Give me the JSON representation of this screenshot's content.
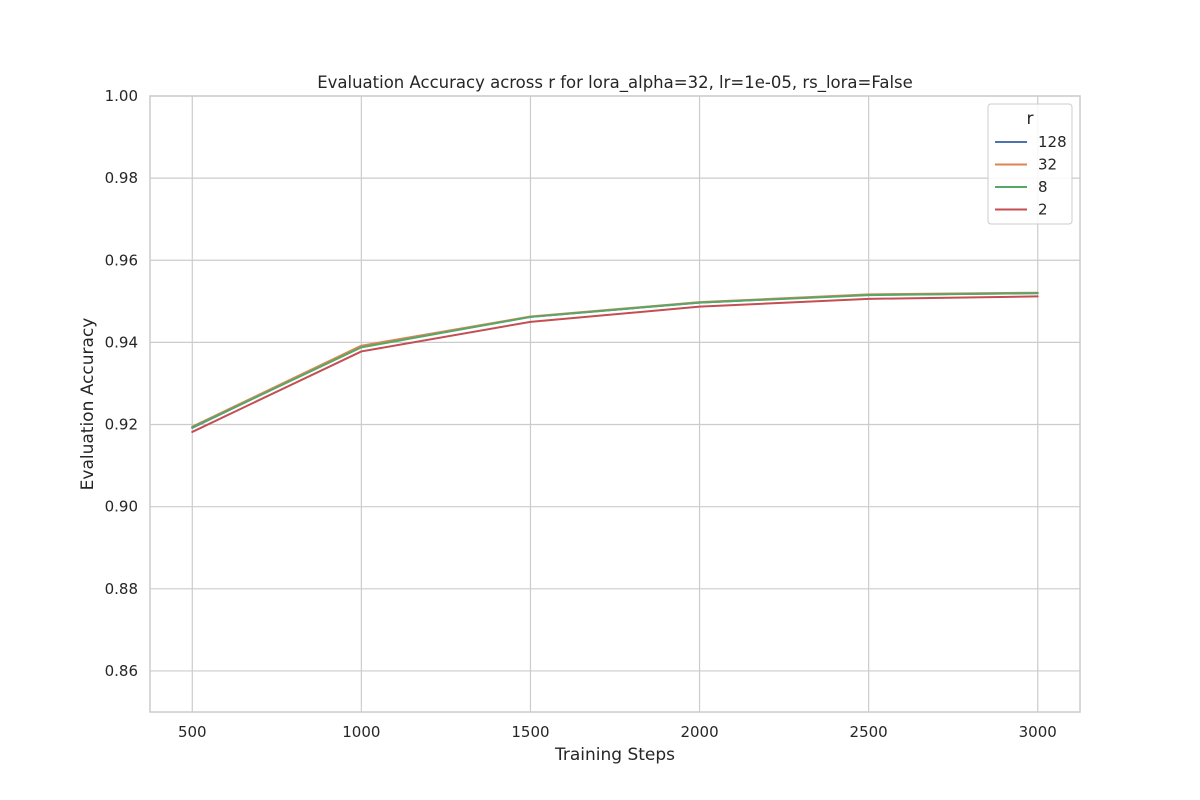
{
  "chart_data": {
    "type": "line",
    "title": "Evaluation Accuracy across r for lora_alpha=32, lr=1e-05, rs_lora=False",
    "xlabel": "Training Steps",
    "ylabel": "Evaluation Accuracy",
    "x": [
      500,
      1000,
      1500,
      2000,
      2500,
      3000
    ],
    "xticks": [
      500,
      1000,
      1500,
      2000,
      2500,
      3000
    ],
    "xtick_labels": [
      "500",
      "1000",
      "1500",
      "2000",
      "2500",
      "3000"
    ],
    "xlim": [
      375,
      3125
    ],
    "yticks": [
      0.86,
      0.88,
      0.9,
      0.92,
      0.94,
      0.96,
      0.98,
      1.0
    ],
    "ytick_labels": [
      "0.86",
      "0.88",
      "0.90",
      "0.92",
      "0.94",
      "0.96",
      "0.98",
      "1.00"
    ],
    "ylim": [
      0.85,
      1.0
    ],
    "grid": true,
    "legend": {
      "title": "r",
      "placement": "top-right"
    },
    "series": [
      {
        "name": "128",
        "color": "#4c72b0",
        "values": [
          0.9192,
          0.939,
          0.9462,
          0.9497,
          0.9516,
          0.952
        ]
      },
      {
        "name": "32",
        "color": "#dd8452",
        "values": [
          0.9195,
          0.9392,
          0.9463,
          0.9498,
          0.9517,
          0.9521
        ]
      },
      {
        "name": "8",
        "color": "#55a868",
        "values": [
          0.9193,
          0.9388,
          0.9462,
          0.9497,
          0.9515,
          0.952
        ]
      },
      {
        "name": "2",
        "color": "#c44e52",
        "values": [
          0.9182,
          0.9378,
          0.945,
          0.9487,
          0.9506,
          0.9512
        ]
      }
    ]
  }
}
